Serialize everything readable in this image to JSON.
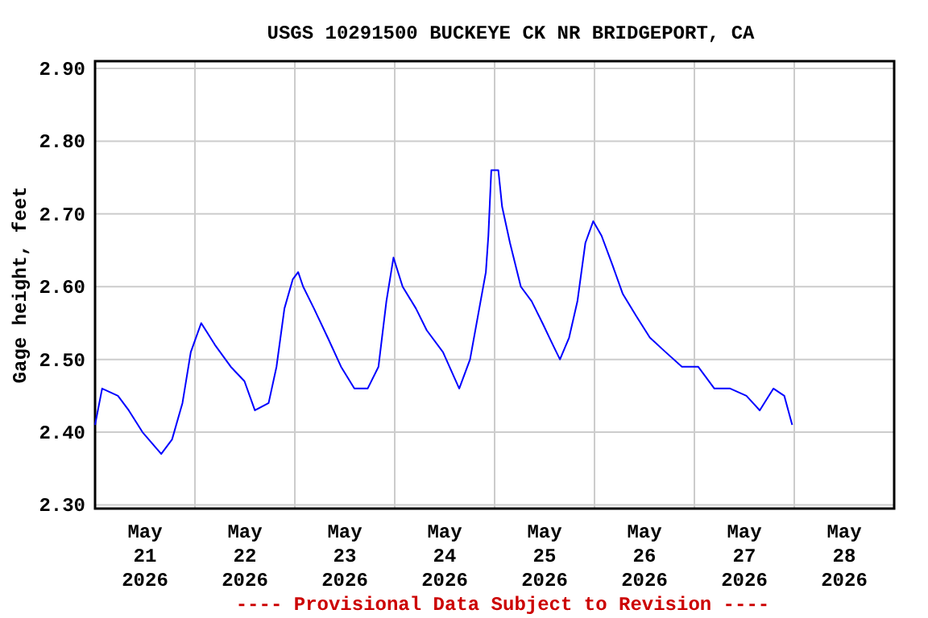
{
  "chart_data": {
    "type": "line",
    "title": "USGS 10291500 BUCKEYE CK NR BRIDGEPORT, CA",
    "ylabel": "Gage height, feet",
    "annotations": [
      "---- Provisional Data Subject to Revision ----"
    ],
    "x": [
      "2026-05-21T00:00",
      "2026-05-21T01:42",
      "2026-05-21T05:30",
      "2026-05-21T08:06",
      "2026-05-21T11:24",
      "2026-05-21T15:54",
      "2026-05-21T18:30",
      "2026-05-21T21:00",
      "2026-05-21T23:00",
      "2026-05-22T01:30",
      "2026-05-22T04:48",
      "2026-05-22T08:36",
      "2026-05-22T11:54",
      "2026-05-22T14:24",
      "2026-05-22T17:42",
      "2026-05-22T19:36",
      "2026-05-22T21:30",
      "2026-05-22T23:30",
      "2026-05-23T00:48",
      "2026-05-23T02:00",
      "2026-05-23T04:36",
      "2026-05-23T07:54",
      "2026-05-23T11:06",
      "2026-05-23T14:18",
      "2026-05-23T17:30",
      "2026-05-23T20:06",
      "2026-05-23T22:00",
      "2026-05-23T23:42",
      "2026-05-24T01:54",
      "2026-05-24T05:06",
      "2026-05-24T07:42",
      "2026-05-24T11:36",
      "2026-05-24T15:30",
      "2026-05-24T18:06",
      "2026-05-24T20:00",
      "2026-05-24T21:54",
      "2026-05-24T22:30",
      "2026-05-24T23:12",
      "2026-05-25T00:54",
      "2026-05-25T01:48",
      "2026-05-25T03:42",
      "2026-05-25T06:18",
      "2026-05-25T08:54",
      "2026-05-25T11:30",
      "2026-05-25T14:00",
      "2026-05-25T15:42",
      "2026-05-25T17:54",
      "2026-05-25T19:54",
      "2026-05-25T21:48",
      "2026-05-25T23:42",
      "2026-05-26T01:42",
      "2026-05-26T04:18",
      "2026-05-26T06:48",
      "2026-05-26T10:00",
      "2026-05-26T13:18",
      "2026-05-26T17:06",
      "2026-05-26T21:00",
      "2026-05-27T00:54",
      "2026-05-27T04:48",
      "2026-05-27T08:36",
      "2026-05-27T12:30",
      "2026-05-27T15:42",
      "2026-05-27T19:00",
      "2026-05-27T21:36",
      "2026-05-27T23:30"
    ],
    "series": [
      {
        "color": "#0000ff",
        "values": [
          2.41,
          2.46,
          2.45,
          2.43,
          2.4,
          2.37,
          2.39,
          2.44,
          2.51,
          2.55,
          2.52,
          2.49,
          2.47,
          2.43,
          2.44,
          2.49,
          2.57,
          2.61,
          2.62,
          2.6,
          2.57,
          2.53,
          2.49,
          2.46,
          2.46,
          2.49,
          2.58,
          2.64,
          2.6,
          2.57,
          2.54,
          2.51,
          2.46,
          2.5,
          2.56,
          2.62,
          2.67,
          2.76,
          2.76,
          2.71,
          2.66,
          2.6,
          2.58,
          2.55,
          2.52,
          2.5,
          2.53,
          2.58,
          2.66,
          2.69,
          2.67,
          2.63,
          2.59,
          2.56,
          2.53,
          2.51,
          2.49,
          2.49,
          2.46,
          2.46,
          2.45,
          2.43,
          2.46,
          2.45,
          2.41
        ]
      }
    ],
    "xlim": [
      "2026-05-21T00:00",
      "2026-05-29T00:00"
    ],
    "xticks": [
      {
        "value": "2026-05-21T12:00",
        "label": "May\n21\n2026"
      },
      {
        "value": "2026-05-22T00:00",
        "label": null
      },
      {
        "value": "2026-05-22T12:00",
        "label": "May\n22\n2026"
      },
      {
        "value": "2026-05-23T00:00",
        "label": null
      },
      {
        "value": "2026-05-23T12:00",
        "label": "May\n23\n2026"
      },
      {
        "value": "2026-05-24T00:00",
        "label": null
      },
      {
        "value": "2026-05-24T12:00",
        "label": "May\n24\n2026"
      },
      {
        "value": "2026-05-25T00:00",
        "label": null
      },
      {
        "value": "2026-05-25T12:00",
        "label": "May\n25\n2026"
      },
      {
        "value": "2026-05-26T00:00",
        "label": null
      },
      {
        "value": "2026-05-26T12:00",
        "label": "May\n26\n2026"
      },
      {
        "value": "2026-05-27T00:00",
        "label": null
      },
      {
        "value": "2026-05-27T12:00",
        "label": "May\n27\n2026"
      },
      {
        "value": "2026-05-28T00:00",
        "label": null
      },
      {
        "value": "2026-05-28T12:00",
        "label": "May\n28\n2026"
      }
    ],
    "ylim": [
      2.295,
      2.91
    ],
    "yticks": [
      {
        "value": 2.3,
        "label": "2.30"
      },
      {
        "value": 2.4,
        "label": "2.40"
      },
      {
        "value": 2.5,
        "label": "2.50"
      },
      {
        "value": 2.6,
        "label": "2.60"
      },
      {
        "value": 2.7,
        "label": "2.70"
      },
      {
        "value": 2.8,
        "label": "2.80"
      },
      {
        "value": 2.9,
        "label": "2.90"
      }
    ],
    "grid": true,
    "marker": "none",
    "line_style": "solid"
  }
}
